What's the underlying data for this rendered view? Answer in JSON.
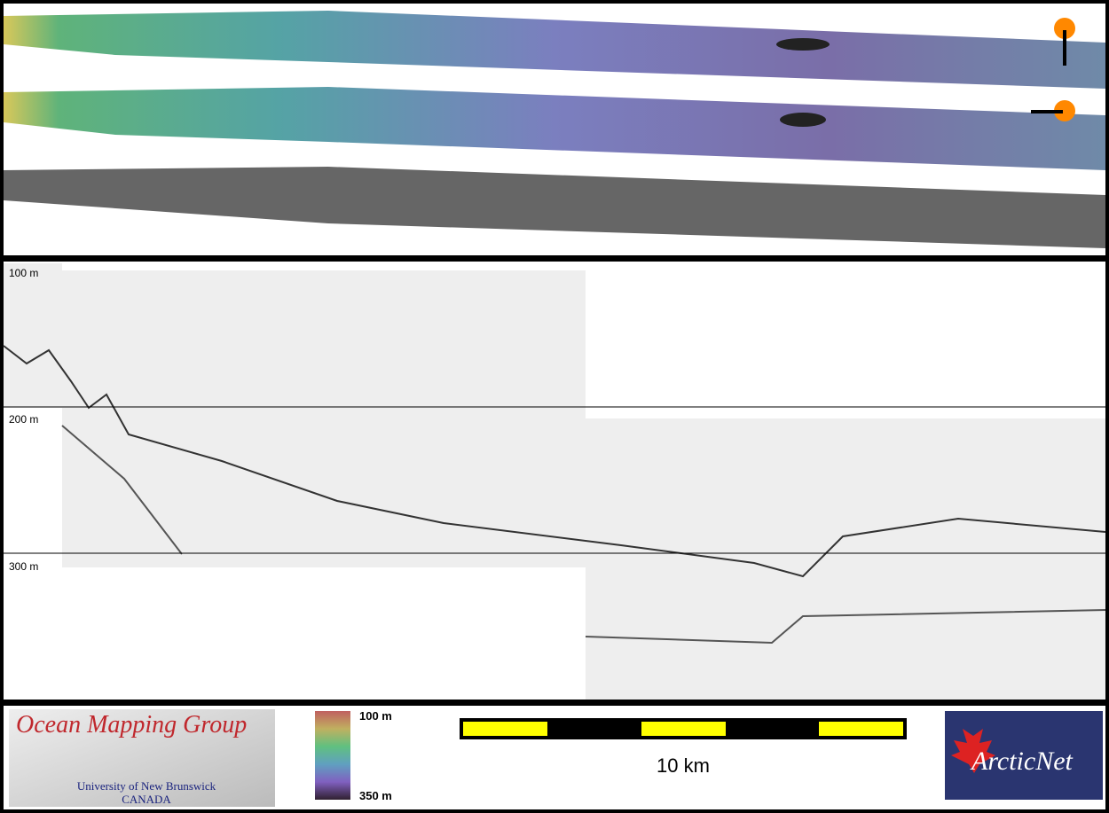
{
  "profile": {
    "depth_labels": [
      "100 m",
      "200 m",
      "300 m"
    ]
  },
  "colorbar": {
    "top_label": "100 m",
    "bottom_label": "350 m"
  },
  "scale_bar": {
    "label": "10 km"
  },
  "logos": {
    "omg_title": "Ocean Mapping Group",
    "omg_line1": "University of New Brunswick",
    "omg_line2": "CANADA",
    "arcticnet": "ArcticNet"
  }
}
